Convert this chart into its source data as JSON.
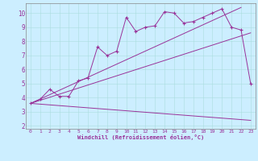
{
  "bg_color": "#cceeff",
  "line_color": "#993399",
  "xlabel": "Windchill (Refroidissement éolien,°C)",
  "xlim": [
    -0.5,
    23.5
  ],
  "ylim": [
    1.8,
    10.7
  ],
  "yticks": [
    2,
    3,
    4,
    5,
    6,
    7,
    8,
    9,
    10
  ],
  "xticks": [
    0,
    1,
    2,
    3,
    4,
    5,
    6,
    7,
    8,
    9,
    10,
    11,
    12,
    13,
    14,
    15,
    16,
    17,
    18,
    19,
    20,
    21,
    22,
    23
  ],
  "line1_x": [
    0,
    1,
    2,
    3,
    4,
    5,
    6,
    7,
    8,
    9,
    10,
    11,
    12,
    13,
    14,
    15,
    16,
    17,
    18,
    19,
    20,
    21,
    22,
    23
  ],
  "line1_y": [
    3.6,
    3.9,
    4.6,
    4.1,
    4.1,
    5.2,
    5.4,
    7.6,
    7.0,
    7.3,
    9.7,
    8.7,
    9.0,
    9.1,
    10.1,
    10.0,
    9.3,
    9.4,
    9.7,
    10.0,
    10.3,
    9.0,
    8.8,
    5.0
  ],
  "line2_x": [
    0,
    22
  ],
  "line2_y": [
    3.6,
    10.4
  ],
  "line3_x": [
    0,
    23
  ],
  "line3_y": [
    3.6,
    8.6
  ],
  "line4_x": [
    0,
    23
  ],
  "line4_y": [
    3.6,
    2.4
  ]
}
